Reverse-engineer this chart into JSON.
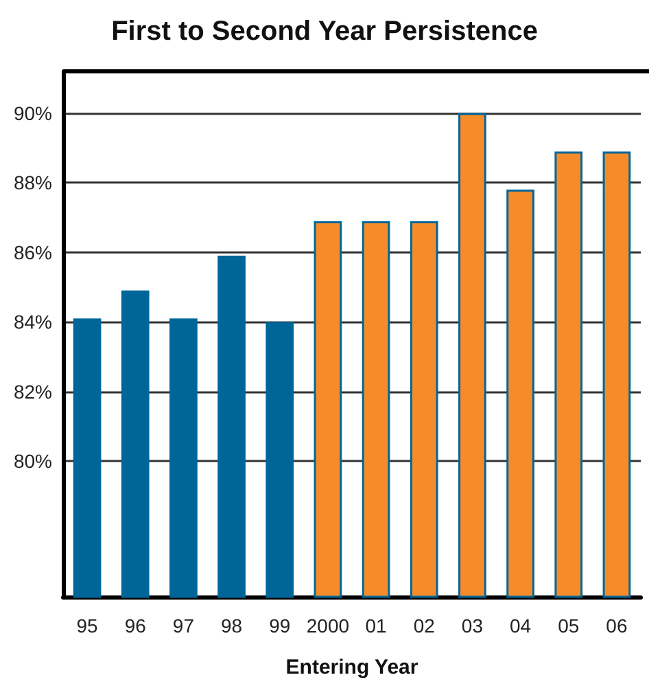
{
  "chart_data": {
    "type": "bar",
    "title": "First to Second Year Persistence",
    "xlabel": "Entering Year",
    "categories": [
      "95",
      "96",
      "97",
      "98",
      "99",
      "2000",
      "01",
      "02",
      "03",
      "04",
      "05",
      "06"
    ],
    "values": [
      84.1,
      84.9,
      84.1,
      85.9,
      84.0,
      86.9,
      86.9,
      86.9,
      90.0,
      87.8,
      88.9,
      88.9
    ],
    "colors": [
      "#006699",
      "#006699",
      "#006699",
      "#006699",
      "#006699",
      "#f68b2a",
      "#f68b2a",
      "#f68b2a",
      "#f68b2a",
      "#f68b2a",
      "#f68b2a",
      "#f68b2a"
    ],
    "ylim": [
      76.1,
      91.2
    ],
    "yticks": [
      {
        "value": 80,
        "label": "80%"
      },
      {
        "value": 82,
        "label": "82%"
      },
      {
        "value": 84,
        "label": "84%"
      },
      {
        "value": 86,
        "label": "86%"
      },
      {
        "value": 88,
        "label": "88%"
      },
      {
        "value": 90,
        "label": "90%"
      }
    ],
    "grid": "y"
  }
}
